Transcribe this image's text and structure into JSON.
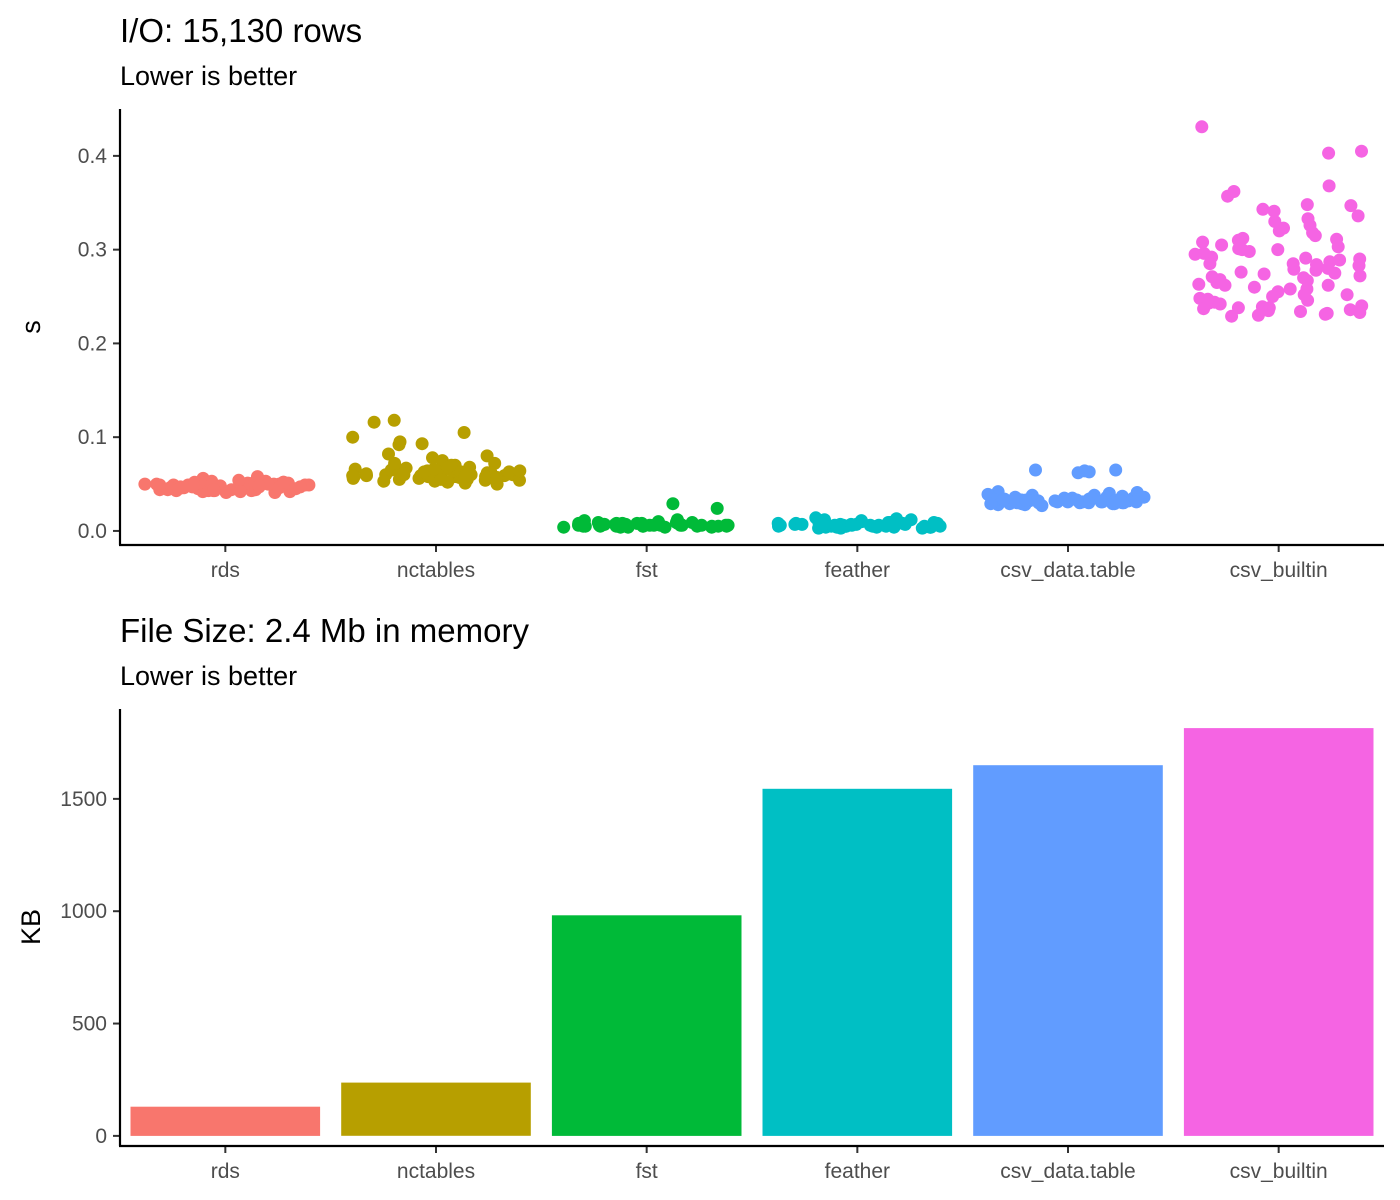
{
  "chart_data": [
    {
      "type": "scatter",
      "title": "I/O: 15,130 rows",
      "subtitle": "Lower is better",
      "xlabel": "",
      "ylabel": "s",
      "categories": [
        "rds",
        "nctables",
        "fst",
        "feather",
        "csv_data.table",
        "csv_builtin"
      ],
      "ylim": [
        -0.015,
        0.45
      ],
      "yticks": [
        0.0,
        0.1,
        0.2,
        0.3,
        0.4
      ],
      "ytick_labels": [
        "0.0",
        "0.1",
        "0.2",
        "0.3",
        "0.4"
      ],
      "legend": "none",
      "grid": false,
      "colors": [
        "#F8766D",
        "#B79F00",
        "#00BA38",
        "#00BFC4",
        "#619CFF",
        "#F564E3"
      ],
      "series": [
        {
          "category": "rds",
          "values": [
            0.043,
            0.047,
            0.051,
            0.049,
            0.044,
            0.052,
            0.046,
            0.042,
            0.05,
            0.048,
            0.053,
            0.045,
            0.041,
            0.049,
            0.054,
            0.047,
            0.043,
            0.05,
            0.046,
            0.052,
            0.044,
            0.048,
            0.051,
            0.042,
            0.049,
            0.056,
            0.045,
            0.047,
            0.053,
            0.043,
            0.05,
            0.046,
            0.044,
            0.052,
            0.048,
            0.041,
            0.049,
            0.047,
            0.05,
            0.045,
            0.043,
            0.051,
            0.046,
            0.048,
            0.044,
            0.052,
            0.047,
            0.049,
            0.042,
            0.05,
            0.058,
            0.045,
            0.048,
            0.046,
            0.051,
            0.043,
            0.049,
            0.047,
            0.044,
            0.05
          ]
        },
        {
          "category": "nctables",
          "values": [
            0.118,
            0.116,
            0.105,
            0.1,
            0.095,
            0.092,
            0.093,
            0.082,
            0.08,
            0.078,
            0.075,
            0.072,
            0.07,
            0.068,
            0.066,
            0.065,
            0.064,
            0.063,
            0.062,
            0.062,
            0.061,
            0.06,
            0.06,
            0.059,
            0.059,
            0.058,
            0.058,
            0.057,
            0.057,
            0.056,
            0.056,
            0.055,
            0.055,
            0.054,
            0.054,
            0.053,
            0.053,
            0.052,
            0.051,
            0.05,
            0.068,
            0.064,
            0.061,
            0.063,
            0.059,
            0.066,
            0.058,
            0.062,
            0.06,
            0.057,
            0.065,
            0.061,
            0.059,
            0.063,
            0.056,
            0.067,
            0.06,
            0.062,
            0.058,
            0.064,
            0.07,
            0.057,
            0.061,
            0.059,
            0.072,
            0.055,
            0.063,
            0.06,
            0.058,
            0.066
          ]
        },
        {
          "category": "fst",
          "values": [
            0.029,
            0.024,
            0.012,
            0.011,
            0.01,
            0.009,
            0.009,
            0.008,
            0.008,
            0.008,
            0.007,
            0.007,
            0.007,
            0.007,
            0.006,
            0.006,
            0.006,
            0.006,
            0.006,
            0.006,
            0.005,
            0.005,
            0.005,
            0.005,
            0.005,
            0.005,
            0.004,
            0.004,
            0.004,
            0.004,
            0.008,
            0.006,
            0.007,
            0.005,
            0.009,
            0.006,
            0.007,
            0.005,
            0.006,
            0.008,
            0.005,
            0.007,
            0.006,
            0.004,
            0.008,
            0.006,
            0.005,
            0.007,
            0.006,
            0.005
          ]
        },
        {
          "category": "feather",
          "values": [
            0.014,
            0.013,
            0.012,
            0.012,
            0.011,
            0.011,
            0.01,
            0.01,
            0.009,
            0.009,
            0.009,
            0.008,
            0.008,
            0.008,
            0.007,
            0.007,
            0.007,
            0.006,
            0.006,
            0.006,
            0.006,
            0.005,
            0.005,
            0.005,
            0.005,
            0.004,
            0.004,
            0.004,
            0.004,
            0.003,
            0.003,
            0.003,
            0.006,
            0.005,
            0.007,
            0.004,
            0.008,
            0.005,
            0.006,
            0.004,
            0.007,
            0.005,
            0.006,
            0.009,
            0.004,
            0.005,
            0.007,
            0.006,
            0.005,
            0.004
          ]
        },
        {
          "category": "csv_data.table",
          "values": [
            0.065,
            0.065,
            0.064,
            0.063,
            0.062,
            0.042,
            0.041,
            0.04,
            0.039,
            0.038,
            0.038,
            0.037,
            0.036,
            0.036,
            0.035,
            0.035,
            0.034,
            0.034,
            0.033,
            0.033,
            0.033,
            0.032,
            0.032,
            0.032,
            0.031,
            0.031,
            0.031,
            0.03,
            0.03,
            0.03,
            0.029,
            0.029,
            0.029,
            0.028,
            0.028,
            0.027,
            0.035,
            0.032,
            0.033,
            0.03,
            0.034,
            0.031,
            0.036,
            0.029,
            0.033,
            0.032,
            0.031,
            0.034,
            0.03,
            0.033,
            0.032,
            0.031,
            0.035,
            0.03,
            0.032,
            0.034,
            0.031,
            0.033,
            0.029,
            0.032
          ]
        },
        {
          "category": "csv_builtin",
          "values": [
            0.431,
            0.405,
            0.403,
            0.368,
            0.362,
            0.357,
            0.348,
            0.347,
            0.343,
            0.341,
            0.336,
            0.333,
            0.33,
            0.326,
            0.323,
            0.32,
            0.318,
            0.315,
            0.312,
            0.31,
            0.308,
            0.305,
            0.303,
            0.3,
            0.298,
            0.295,
            0.292,
            0.29,
            0.287,
            0.285,
            0.283,
            0.28,
            0.278,
            0.275,
            0.272,
            0.27,
            0.267,
            0.265,
            0.262,
            0.26,
            0.258,
            0.255,
            0.252,
            0.25,
            0.248,
            0.246,
            0.244,
            0.242,
            0.24,
            0.239,
            0.238,
            0.237,
            0.236,
            0.235,
            0.234,
            0.233,
            0.232,
            0.231,
            0.23,
            0.229,
            0.284,
            0.296,
            0.263,
            0.311,
            0.274,
            0.289,
            0.252,
            0.301,
            0.268,
            0.243,
            0.279,
            0.258,
            0.291,
            0.247,
            0.276,
            0.238,
            0.285,
            0.262,
            0.271,
            0.3
          ]
        }
      ]
    },
    {
      "type": "bar",
      "title": "File Size: 2.4 Mb in memory",
      "subtitle": "Lower is better",
      "xlabel": "",
      "ylabel": "KB",
      "categories": [
        "rds",
        "nctables",
        "fst",
        "feather",
        "csv_data.table",
        "csv_builtin"
      ],
      "values": [
        130,
        237,
        982,
        1545,
        1650,
        1815
      ],
      "ylim": [
        -45,
        1900
      ],
      "yticks": [
        0,
        500,
        1000,
        1500
      ],
      "ytick_labels": [
        "0",
        "500",
        "1000",
        "1500"
      ],
      "legend": "none",
      "grid": false,
      "colors": [
        "#F8766D",
        "#B79F00",
        "#00BA38",
        "#00BFC4",
        "#619CFF",
        "#F564E3"
      ]
    }
  ]
}
